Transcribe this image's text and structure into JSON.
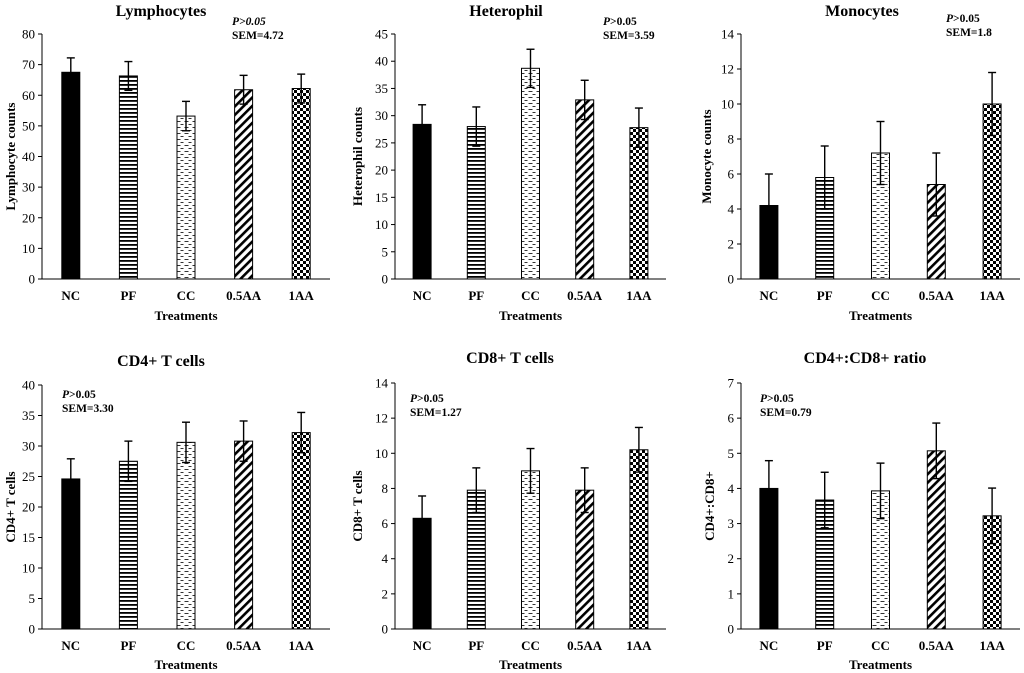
{
  "patterns": [
    "solid",
    "horizontal-lines",
    "dashes",
    "diagonal",
    "checker"
  ],
  "colors": {
    "ink": "#000000",
    "background": "#ffffff"
  },
  "chart_data": [
    {
      "type": "bar",
      "title": "Lymphocytes",
      "xlabel": "Treatments",
      "ylabel": "Lymphocyte counts",
      "categories": [
        "NC",
        "PF",
        "CC",
        "0.5AA",
        "1AA"
      ],
      "values": [
        67.5,
        66.3,
        53.2,
        61.8,
        62.2
      ],
      "errors": [
        4.7,
        4.7,
        4.8,
        4.7,
        4.7
      ],
      "ylim": [
        0,
        80
      ],
      "yticks": [
        "0",
        "10",
        "20",
        "30",
        "40",
        "50",
        "60",
        "70",
        "80"
      ],
      "annotation": {
        "p_text": "P>0.05",
        "p_italic_all": true,
        "sem_text": "SEM=4.72",
        "position": "top-right"
      }
    },
    {
      "type": "bar",
      "title": "Heterophil",
      "xlabel": "Treatments",
      "ylabel": "Heterophil counts",
      "categories": [
        "NC",
        "PF",
        "CC",
        "0.5AA",
        "1AA"
      ],
      "values": [
        28.4,
        28.0,
        38.7,
        32.9,
        27.8
      ],
      "errors": [
        3.6,
        3.6,
        3.5,
        3.6,
        3.6
      ],
      "ylim": [
        0,
        45
      ],
      "yticks": [
        "0",
        "5",
        "10",
        "15",
        "20",
        "25",
        "30",
        "35",
        "40",
        "45"
      ],
      "annotation": {
        "p_text": "P>0.05",
        "p_italic_all": false,
        "sem_text": "SEM=3.59",
        "position": "top-right"
      }
    },
    {
      "type": "bar",
      "title": "Monocytes",
      "xlabel": "Treatments",
      "ylabel": "Monocyte counts",
      "categories": [
        "NC",
        "PF",
        "CC",
        "0.5AA",
        "1AA"
      ],
      "values": [
        4.2,
        5.8,
        7.2,
        5.4,
        10.0
      ],
      "errors": [
        1.8,
        1.8,
        1.8,
        1.8,
        1.8
      ],
      "ylim": [
        0,
        14
      ],
      "yticks": [
        "0",
        "2",
        "4",
        "6",
        "8",
        "10",
        "12",
        "14"
      ],
      "annotation": {
        "p_text": "P>0.05",
        "p_italic_all": false,
        "sem_text": "SEM=1.8",
        "position": "top-right"
      }
    },
    {
      "type": "bar",
      "title": "CD4+ T cells",
      "xlabel": "Treatments",
      "ylabel": "CD4+ T cells",
      "categories": [
        "NC",
        "PF",
        "CC",
        "0.5AA",
        "1AA"
      ],
      "values": [
        24.6,
        27.5,
        30.6,
        30.8,
        32.2
      ],
      "errors": [
        3.3,
        3.3,
        3.3,
        3.3,
        3.3
      ],
      "ylim": [
        0,
        40
      ],
      "yticks": [
        "0",
        "5",
        "10",
        "15",
        "20",
        "25",
        "30",
        "35",
        "40"
      ],
      "annotation": {
        "p_text": "P>0.05",
        "p_italic_all": false,
        "sem_text": "SEM=3.30",
        "position": "top-left"
      }
    },
    {
      "type": "bar",
      "title": "CD8+ T cells",
      "xlabel": "Treatments",
      "ylabel": "CD8+ T cells",
      "categories": [
        "NC",
        "PF",
        "CC",
        "0.5AA",
        "1AA"
      ],
      "values": [
        6.3,
        7.9,
        9.0,
        7.9,
        10.2
      ],
      "errors": [
        1.27,
        1.27,
        1.27,
        1.27,
        1.27
      ],
      "ylim": [
        0,
        14
      ],
      "yticks": [
        "0",
        "2",
        "4",
        "6",
        "8",
        "10",
        "12",
        "14"
      ],
      "annotation": {
        "p_text": "P>0.05",
        "p_italic_all": false,
        "sem_text": "SEM=1.27",
        "position": "top-left"
      }
    },
    {
      "type": "bar",
      "title": "CD4+:CD8+ ratio",
      "xlabel": "Treatments",
      "ylabel": "CD4+:CD8+",
      "categories": [
        "NC",
        "PF",
        "CC",
        "0.5AA",
        "1AA"
      ],
      "values": [
        4.0,
        3.67,
        3.93,
        5.07,
        3.22
      ],
      "errors": [
        0.79,
        0.79,
        0.79,
        0.79,
        0.79
      ],
      "ylim": [
        0,
        7
      ],
      "yticks": [
        "0",
        "1",
        "2",
        "3",
        "4",
        "5",
        "6",
        "7"
      ],
      "annotation": {
        "p_text": "P>0.05",
        "p_italic_all": false,
        "sem_text": "SEM=0.79",
        "position": "top-left"
      }
    }
  ]
}
